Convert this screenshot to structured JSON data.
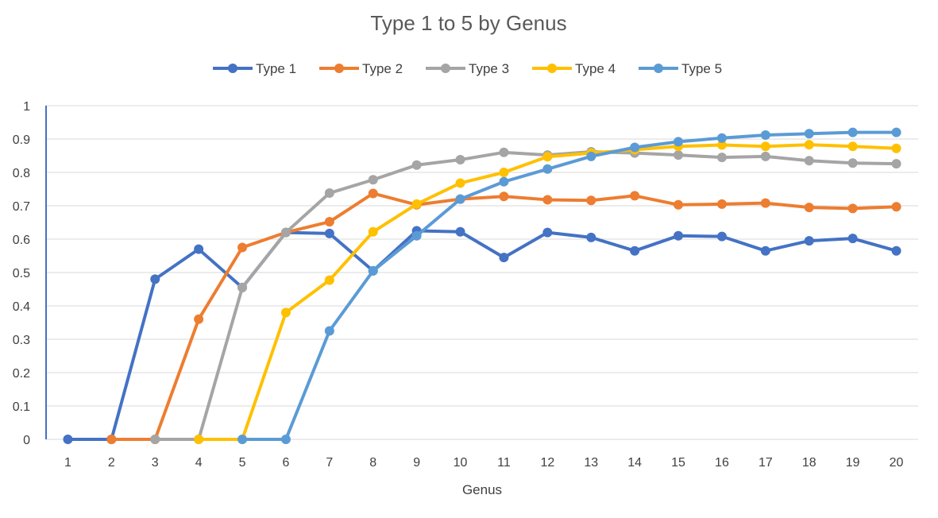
{
  "chart_data": {
    "type": "line",
    "title": "Type 1 to 5 by Genus",
    "xlabel": "Genus",
    "ylabel": "",
    "categories": [
      "1",
      "2",
      "3",
      "4",
      "5",
      "6",
      "7",
      "8",
      "9",
      "10",
      "11",
      "12",
      "13",
      "14",
      "15",
      "16",
      "17",
      "18",
      "19",
      "20"
    ],
    "ylim": [
      0,
      1
    ],
    "yticks": [
      "0",
      "0.1",
      "0.2",
      "0.3",
      "0.4",
      "0.5",
      "0.6",
      "0.7",
      "0.8",
      "0.9",
      "1"
    ],
    "grid": true,
    "legend_position": "top",
    "series": [
      {
        "name": "Type 1",
        "color": "#4472C4",
        "values": [
          0,
          0,
          0.48,
          0.57,
          0.455,
          0.62,
          0.617,
          0.505,
          0.625,
          0.622,
          0.545,
          0.62,
          0.605,
          0.565,
          0.61,
          0.608,
          0.565,
          0.595,
          0.602,
          0.565
        ]
      },
      {
        "name": "Type 2",
        "color": "#ED7D31",
        "values": [
          null,
          0,
          0,
          0.36,
          0.575,
          0.62,
          0.652,
          0.737,
          0.703,
          0.72,
          0.728,
          0.718,
          0.716,
          0.73,
          0.703,
          0.705,
          0.708,
          0.695,
          0.692,
          0.697
        ]
      },
      {
        "name": "Type 3",
        "color": "#A5A5A5",
        "values": [
          null,
          null,
          0,
          0,
          0.455,
          0.62,
          0.738,
          0.778,
          0.822,
          0.838,
          0.86,
          0.852,
          0.862,
          0.858,
          0.852,
          0.845,
          0.848,
          0.835,
          0.828,
          0.826
        ]
      },
      {
        "name": "Type 4",
        "color": "#FFC000",
        "values": [
          null,
          null,
          null,
          0,
          0,
          0.38,
          0.477,
          0.622,
          0.705,
          0.768,
          0.8,
          0.847,
          0.858,
          0.868,
          0.878,
          0.882,
          0.878,
          0.883,
          0.878,
          0.872
        ]
      },
      {
        "name": "Type 5",
        "color": "#5B9BD5",
        "values": [
          null,
          null,
          null,
          null,
          0,
          0,
          0.325,
          0.505,
          0.61,
          0.72,
          0.772,
          0.81,
          0.848,
          0.875,
          0.892,
          0.903,
          0.912,
          0.916,
          0.92,
          0.92
        ]
      }
    ]
  }
}
